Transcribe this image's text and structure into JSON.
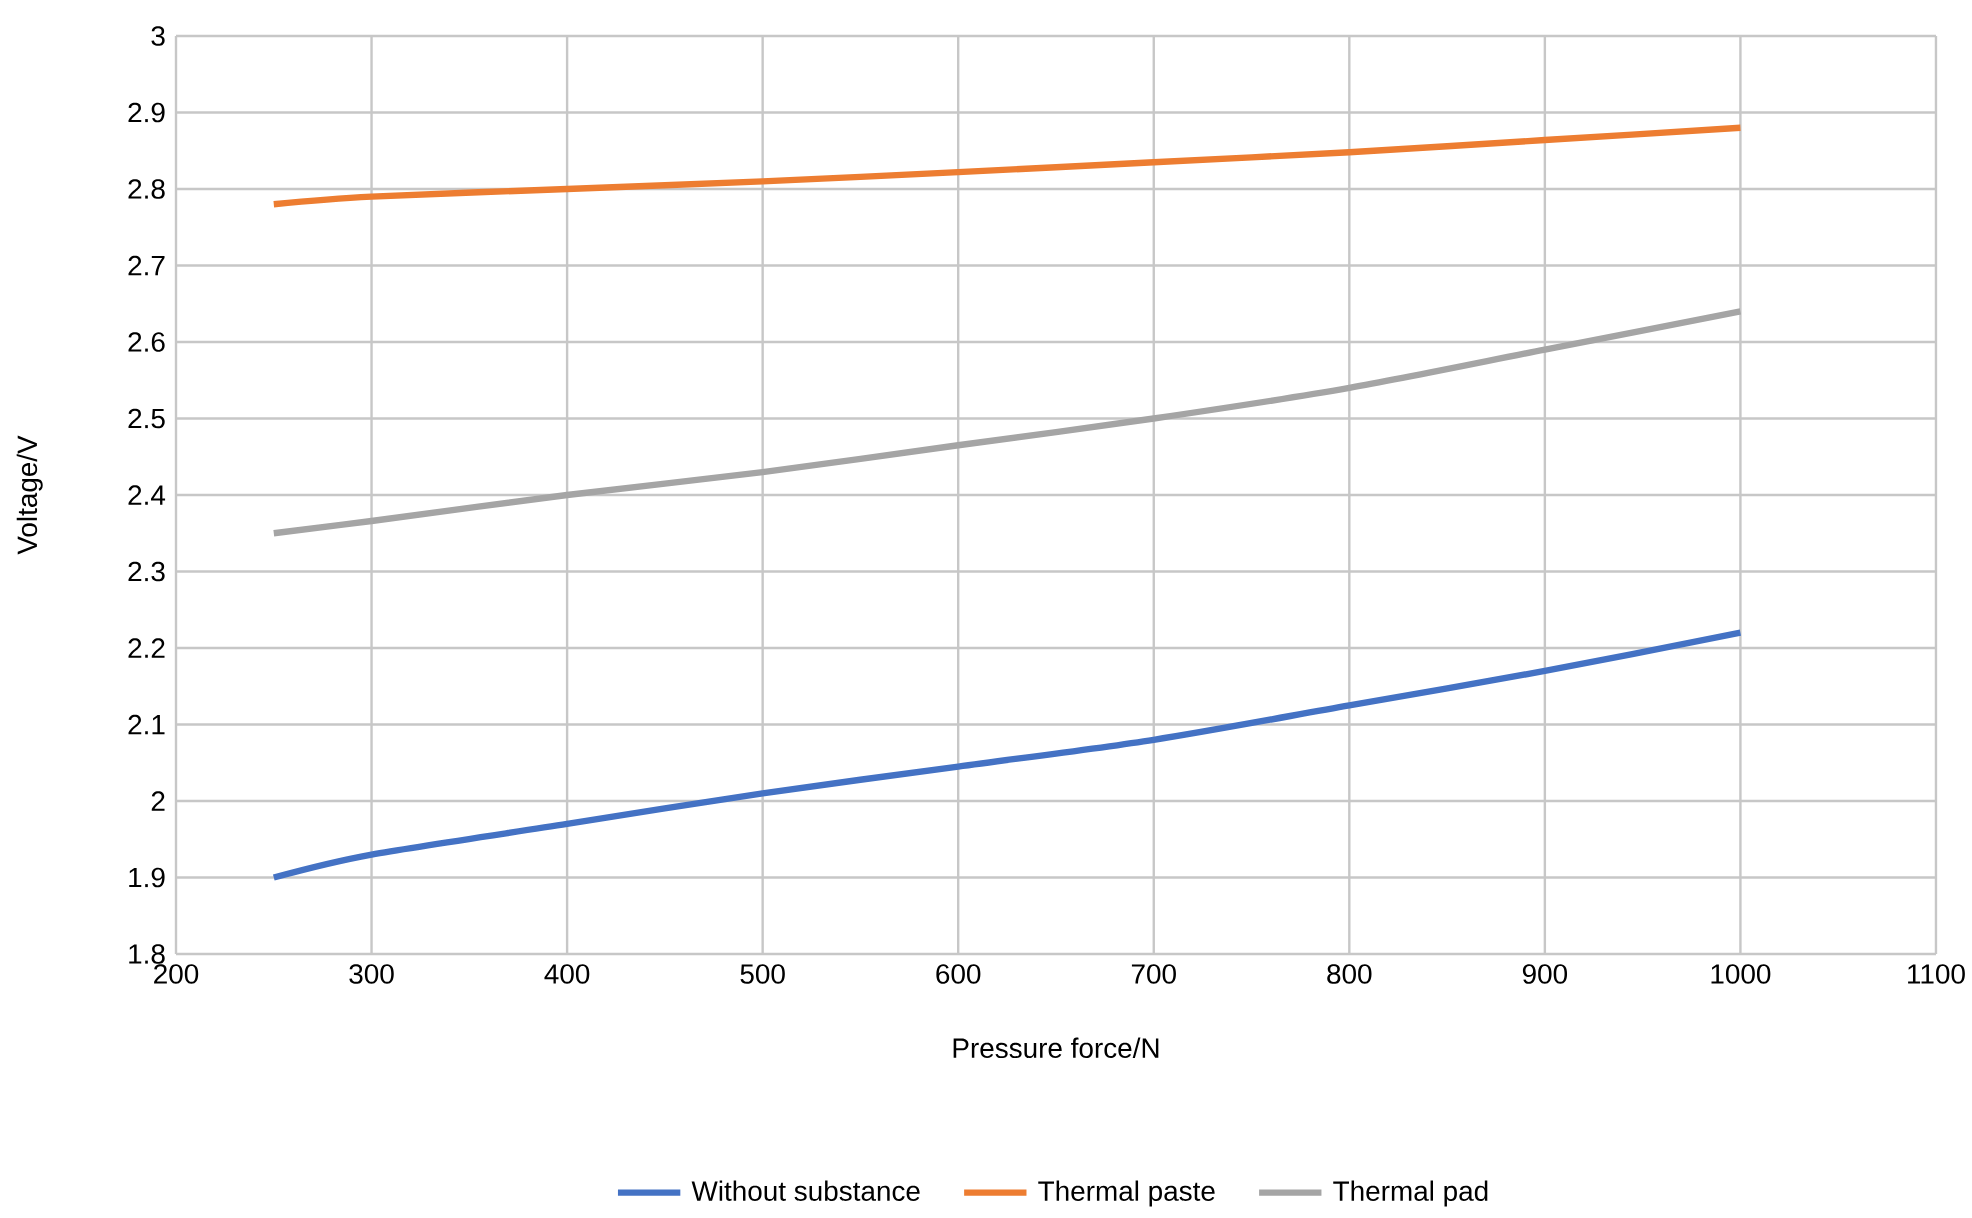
{
  "chart_data": {
    "type": "line",
    "xlabel": "Pressure force/N",
    "ylabel": "Voltage/V",
    "x": [
      250,
      300,
      400,
      500,
      600,
      700,
      800,
      900,
      1000
    ],
    "series": [
      {
        "name": "Without substance",
        "color": "#4472c4",
        "values": [
          1.9,
          1.93,
          1.97,
          2.01,
          2.045,
          2.08,
          2.125,
          2.17,
          2.22
        ]
      },
      {
        "name": "Thermal paste",
        "color": "#ed7d31",
        "values": [
          2.78,
          2.79,
          2.8,
          2.81,
          2.822,
          2.835,
          2.848,
          2.864,
          2.88
        ]
      },
      {
        "name": "Thermal pad",
        "color": "#a5a5a5",
        "values": [
          2.35,
          2.366,
          2.4,
          2.43,
          2.465,
          2.5,
          2.54,
          2.59,
          2.64
        ]
      }
    ],
    "xlim": [
      200,
      1100
    ],
    "xticks": [
      200,
      300,
      400,
      500,
      600,
      700,
      800,
      900,
      1000,
      1100
    ],
    "ylim": [
      1.8,
      3
    ],
    "yticks": [
      1.8,
      1.9,
      2,
      2.1,
      2.2,
      2.3,
      2.4,
      2.5,
      2.6,
      2.7,
      2.8,
      2.9,
      3
    ],
    "grid": true,
    "legend": "bottom",
    "marker": "none",
    "line_style": "solid"
  }
}
